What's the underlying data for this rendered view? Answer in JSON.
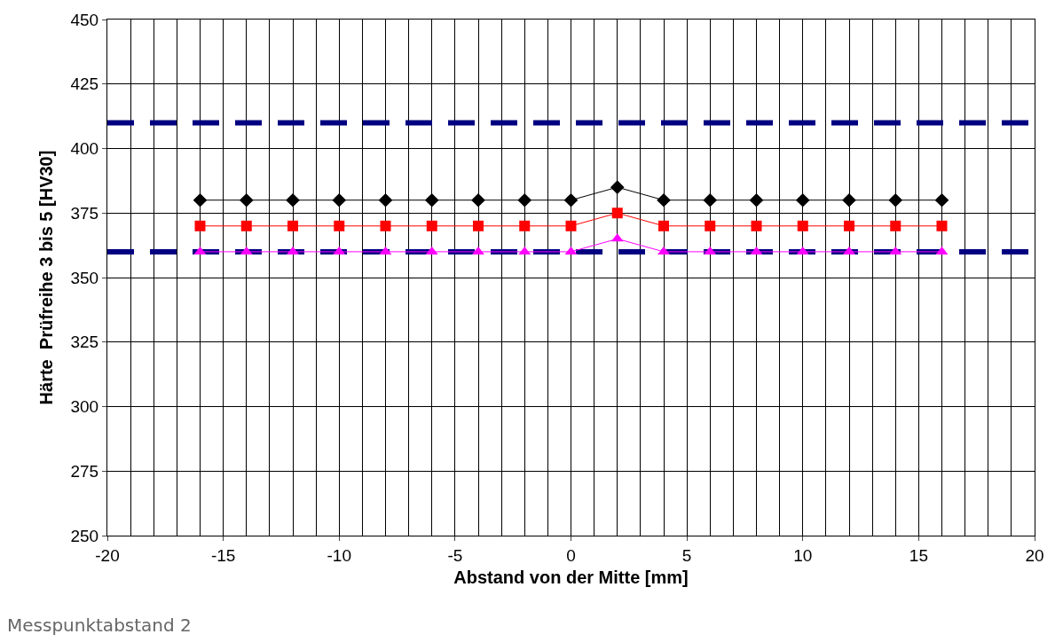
{
  "chart_data": {
    "type": "line",
    "xlabel": "Abstand von der Mitte [mm]",
    "ylabel": "Härte  Prüfreihe 3 bis 5 [HV30]",
    "x": [
      -16,
      -14,
      -12,
      -10,
      -8,
      -6,
      -4,
      -2,
      0,
      2,
      4,
      6,
      8,
      10,
      12,
      14,
      16
    ],
    "series": [
      {
        "color": "#000000",
        "marker": "diamond",
        "values": [
          380,
          380,
          380,
          380,
          380,
          380,
          380,
          380,
          380,
          385,
          380,
          380,
          380,
          380,
          380,
          380,
          380
        ]
      },
      {
        "color": "#ff0000",
        "marker": "square",
        "values": [
          370,
          370,
          370,
          370,
          370,
          370,
          370,
          370,
          370,
          375,
          370,
          370,
          370,
          370,
          370,
          370,
          370
        ]
      },
      {
        "color": "#ff00ff",
        "marker": "triangle",
        "values": [
          360,
          360,
          360,
          360,
          360,
          360,
          360,
          360,
          360,
          365,
          360,
          360,
          360,
          360,
          360,
          360,
          360
        ]
      }
    ],
    "ref_lines": [
      {
        "axis": "y",
        "value": 410,
        "color": "#000080",
        "line_style": "dashed"
      },
      {
        "axis": "y",
        "value": 360,
        "color": "#000080",
        "line_style": "dashed"
      }
    ],
    "xlim": [
      -20,
      20
    ],
    "xticks": [
      -20,
      -15,
      -10,
      -5,
      0,
      5,
      10,
      15,
      20
    ],
    "ylim": [
      250,
      450
    ],
    "yticks": [
      250,
      275,
      300,
      325,
      350,
      375,
      400,
      425,
      450
    ],
    "grid": true,
    "line_style": "solid",
    "annotations": [
      "Messpunktabstand 2"
    ]
  }
}
